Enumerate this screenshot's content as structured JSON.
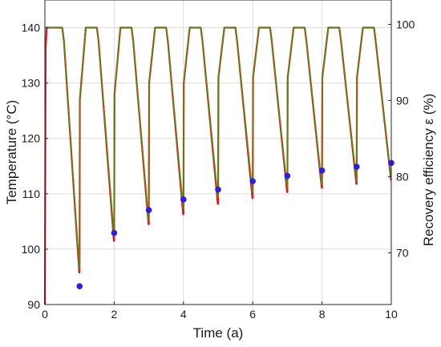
{
  "chart_data": {
    "type": "line",
    "title": "",
    "xlabel": "Time (a)",
    "ylabel_left": "Temperature (°C)",
    "ylabel_right": "Recovery efficiency ε (%)",
    "xlim": [
      0,
      10
    ],
    "ylim_left": [
      90,
      145
    ],
    "ylim_right": [
      63.2,
      103.2
    ],
    "xticks": [
      0,
      2,
      4,
      6,
      8,
      10
    ],
    "yticks_left": [
      90,
      100,
      110,
      120,
      130,
      140
    ],
    "yticks_right": [
      70,
      80,
      90,
      100
    ],
    "grid": true,
    "legend": "none",
    "colors": {
      "temperature_line_1": "#e8101a",
      "temperature_line_2": "#6b7a12",
      "efficiency_points": "#2b1cf0",
      "grid": "#dcdcdc",
      "frame": "#262626"
    },
    "series": [
      {
        "axis": "left",
        "style": "line",
        "color": "#e8101a",
        "x": [
          0,
          0.02,
          0.05,
          0.12,
          0.2,
          0.5,
          0.55,
          0.99,
          1.0,
          1.01,
          1.18,
          1.5,
          1.55,
          1.99,
          2.0,
          2.01,
          2.18,
          2.5,
          2.55,
          2.99,
          3.0,
          3.01,
          3.18,
          3.5,
          3.55,
          3.99,
          4.0,
          4.01,
          4.18,
          4.5,
          4.55,
          4.99,
          5.0,
          5.01,
          5.18,
          5.5,
          5.55,
          5.99,
          6.0,
          6.01,
          6.18,
          6.5,
          6.55,
          6.99,
          7.0,
          7.01,
          7.18,
          7.5,
          7.55,
          7.99,
          8.0,
          8.01,
          8.18,
          8.5,
          8.55,
          8.99,
          9.0,
          9.01,
          9.18,
          9.5,
          9.55,
          9.99,
          10.0
        ],
        "y": [
          90,
          136,
          140,
          140,
          140,
          140,
          137.5,
          95.8,
          95.8,
          127,
          140,
          140,
          137.5,
          101.5,
          101.5,
          128,
          140,
          140,
          137.5,
          104.5,
          104.5,
          130,
          140,
          140,
          137.5,
          106.3,
          106.3,
          130,
          140,
          140,
          137.5,
          108.2,
          108.2,
          131,
          140,
          140,
          137.5,
          109.2,
          109.2,
          131,
          140,
          140,
          137.5,
          110.3,
          110.3,
          131,
          140,
          140,
          137.5,
          111.1,
          111.1,
          131,
          140,
          140,
          137.5,
          111.8,
          111.8,
          131,
          140,
          140,
          137.5,
          112.5,
          112.5
        ]
      },
      {
        "axis": "left",
        "style": "line",
        "color": "#6b7a12",
        "x": [
          0.05,
          0.12,
          0.2,
          0.5,
          0.55,
          0.99,
          1.0,
          1.01,
          1.18,
          1.5,
          1.55,
          1.99,
          2.0,
          2.01,
          2.18,
          2.5,
          2.55,
          2.99,
          3.0,
          3.01,
          3.18,
          3.5,
          3.55,
          3.99,
          4.0,
          4.01,
          4.18,
          4.5,
          4.55,
          4.99,
          5.0,
          5.01,
          5.18,
          5.5,
          5.55,
          5.99,
          6.0,
          6.01,
          6.18,
          6.5,
          6.55,
          6.99,
          7.0,
          7.01,
          7.18,
          7.5,
          7.55,
          7.99,
          8.0,
          8.01,
          8.18,
          8.5,
          8.55,
          8.99,
          9.0,
          9.01,
          9.18,
          9.5,
          9.55,
          9.99,
          10.0
        ],
        "y": [
          140,
          140,
          140,
          140,
          137.5,
          96.5,
          96.5,
          127,
          140,
          140,
          137.5,
          102.5,
          102.5,
          128,
          140,
          140,
          137.5,
          105.2,
          105.2,
          130,
          140,
          140,
          137.5,
          107.3,
          107.3,
          130,
          140,
          140,
          137.5,
          109.3,
          109.3,
          131,
          140,
          140,
          137.5,
          110.2,
          110.2,
          131,
          140,
          140,
          137.5,
          111,
          111,
          131,
          140,
          140,
          137.5,
          111.7,
          111.7,
          131,
          140,
          140,
          137.5,
          112.3,
          112.3,
          131,
          140,
          140,
          137.5,
          112.8,
          112.8
        ]
      },
      {
        "axis": "right",
        "style": "scatter",
        "color": "#2b1cf0",
        "x": [
          1,
          2,
          3,
          4,
          5,
          6,
          7,
          8,
          9,
          10
        ],
        "y": [
          65.6,
          72.6,
          75.6,
          77.0,
          78.3,
          79.4,
          80.1,
          80.8,
          81.3,
          81.8
        ]
      }
    ]
  }
}
